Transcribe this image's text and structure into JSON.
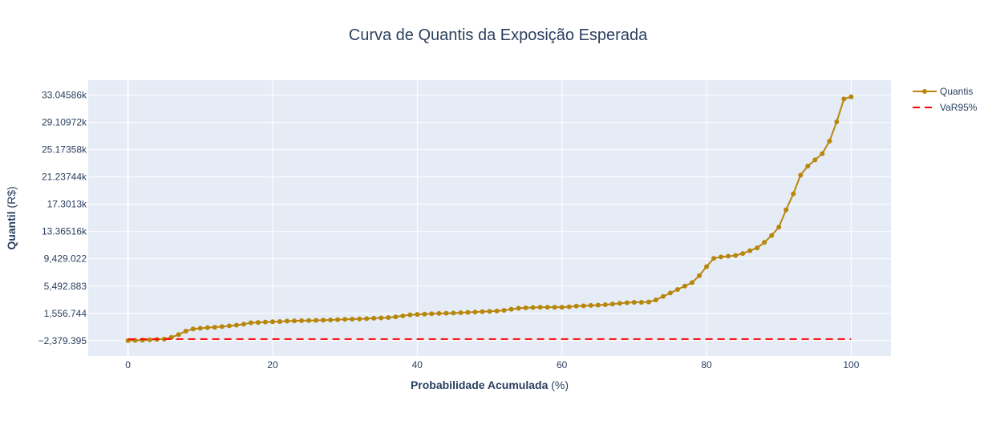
{
  "chart_data": {
    "type": "line",
    "title": "Curva de Quantis da Exposição Esperada",
    "xlabel": {
      "bold": "Probabilidade Acumulada",
      "unit": " (%)"
    },
    "ylabel": {
      "bold": "Quantil",
      "unit": " (R$)"
    },
    "xlim": [
      -5.5,
      105.5
    ],
    "ylim": [
      -4600,
      35200
    ],
    "xticks": [
      0,
      20,
      40,
      60,
      80,
      100
    ],
    "yticks": [
      {
        "value": -2379.395,
        "label": "−2,379.395"
      },
      {
        "value": 1556.744,
        "label": "1,556.744"
      },
      {
        "value": 5492.883,
        "label": "5,492.883"
      },
      {
        "value": 9429.022,
        "label": "9,429.022"
      },
      {
        "value": 13365.16,
        "label": "13.36516k"
      },
      {
        "value": 17301.3,
        "label": "17.3013k"
      },
      {
        "value": 21237.44,
        "label": "21.23744k"
      },
      {
        "value": 25173.58,
        "label": "25.17358k"
      },
      {
        "value": 29109.72,
        "label": "29.10972k"
      },
      {
        "value": 33045.86,
        "label": "33.04586k"
      }
    ],
    "grid": true,
    "legend_position": "top-right",
    "series": [
      {
        "name": "Quantis",
        "mode": "lines+markers",
        "color": "#b8860b",
        "x": [
          0,
          1,
          2,
          3,
          4,
          5,
          6,
          7,
          8,
          9,
          10,
          11,
          12,
          13,
          14,
          15,
          16,
          17,
          18,
          19,
          20,
          21,
          22,
          23,
          24,
          25,
          26,
          27,
          28,
          29,
          30,
          31,
          32,
          33,
          34,
          35,
          36,
          37,
          38,
          39,
          40,
          41,
          42,
          43,
          44,
          45,
          46,
          47,
          48,
          49,
          50,
          51,
          52,
          53,
          54,
          55,
          56,
          57,
          58,
          59,
          60,
          61,
          62,
          63,
          64,
          65,
          66,
          67,
          68,
          69,
          70,
          71,
          72,
          73,
          74,
          75,
          76,
          77,
          78,
          79,
          80,
          81,
          82,
          83,
          84,
          85,
          86,
          87,
          88,
          89,
          90,
          91,
          92,
          93,
          94,
          95,
          96,
          97,
          98,
          99,
          100
        ],
        "y": [
          -2379,
          -2350,
          -2300,
          -2250,
          -2200,
          -2150,
          -1900,
          -1500,
          -1000,
          -700,
          -600,
          -500,
          -450,
          -350,
          -250,
          -150,
          0,
          200,
          250,
          300,
          350,
          380,
          450,
          480,
          500,
          520,
          550,
          580,
          600,
          650,
          700,
          720,
          750,
          800,
          850,
          900,
          950,
          1050,
          1200,
          1350,
          1400,
          1450,
          1500,
          1550,
          1580,
          1600,
          1650,
          1700,
          1750,
          1800,
          1850,
          1900,
          2000,
          2150,
          2300,
          2350,
          2400,
          2450,
          2450,
          2450,
          2450,
          2500,
          2600,
          2650,
          2700,
          2750,
          2800,
          2900,
          3000,
          3100,
          3150,
          3150,
          3200,
          3500,
          4000,
          4500,
          5000,
          5500,
          6000,
          7000,
          8300,
          9500,
          9700,
          9800,
          9900,
          10200,
          10600,
          11000,
          11800,
          12800,
          14000,
          16500,
          18800,
          21500,
          22800,
          23700,
          24600,
          26400,
          29200,
          32500,
          32800
        ]
      },
      {
        "name": "VaR95%",
        "mode": "lines",
        "dash": "dash",
        "color": "#ff0000",
        "x": [
          0,
          100
        ],
        "y": [
          -2150,
          -2150
        ]
      }
    ]
  }
}
